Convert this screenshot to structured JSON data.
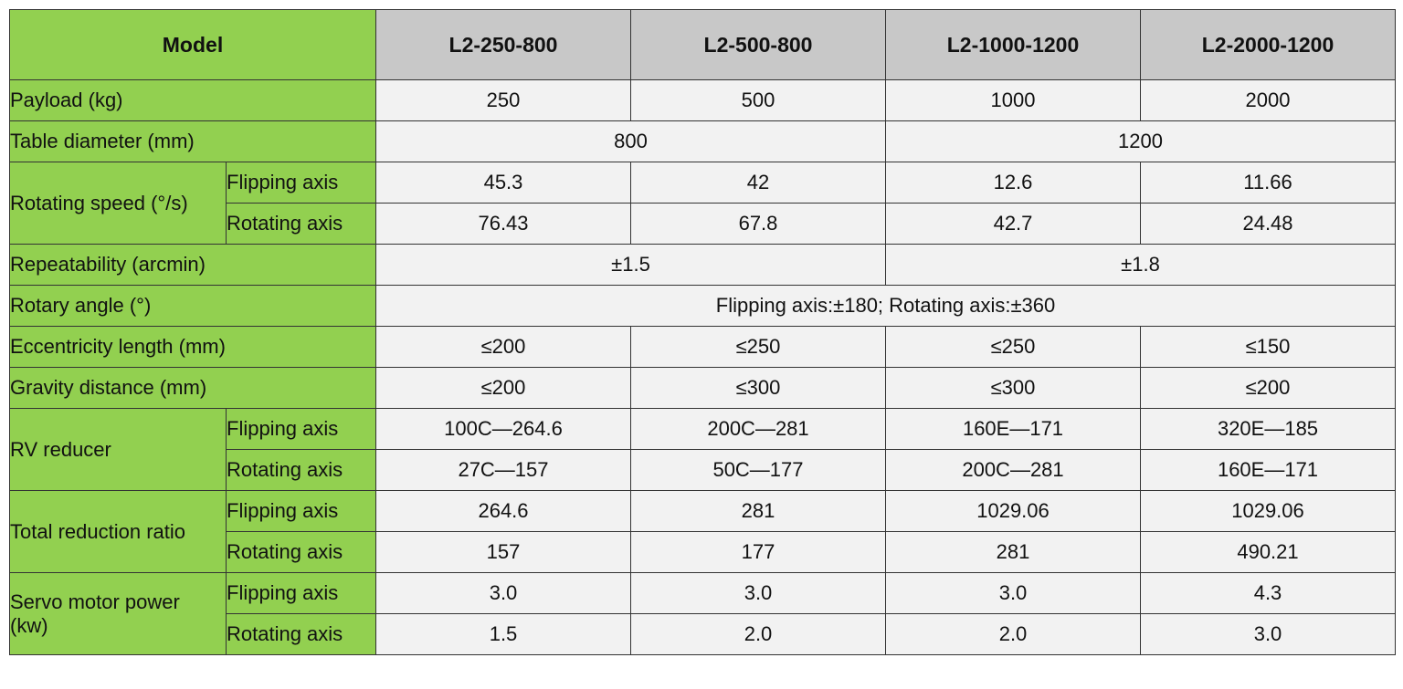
{
  "header": {
    "model_label": "Model",
    "models": [
      "L2-250-800",
      "L2-500-800",
      "L2-1000-1200",
      "L2-2000-1200"
    ]
  },
  "rows": {
    "payload": {
      "label": "Payload (kg)",
      "values": [
        "250",
        "500",
        "1000",
        "2000"
      ]
    },
    "table_diameter": {
      "label": "Table diameter (mm)",
      "values": [
        "800",
        "1200"
      ]
    },
    "rotating_speed": {
      "label": "Rotating speed (°/s)",
      "flipping": {
        "label": "Flipping axis",
        "values": [
          "45.3",
          "42",
          "12.6",
          "11.66"
        ]
      },
      "rotating": {
        "label": "Rotating axis",
        "values": [
          "76.43",
          "67.8",
          "42.7",
          "24.48"
        ]
      }
    },
    "repeatability": {
      "label": "Repeatability (arcmin)",
      "values": [
        "±1.5",
        "±1.8"
      ]
    },
    "rotary_angle": {
      "label": "Rotary angle (°)",
      "value": "Flipping axis:±180; Rotating axis:±360"
    },
    "eccentricity": {
      "label": "Eccentricity length (mm)",
      "values": [
        "≤200",
        "≤250",
        "≤250",
        "≤150"
      ]
    },
    "gravity": {
      "label": "Gravity distance (mm)",
      "values": [
        "≤200",
        "≤300",
        "≤300",
        "≤200"
      ]
    },
    "rv_reducer": {
      "label": "RV reducer",
      "flipping": {
        "label": "Flipping axis",
        "values": [
          "100C—264.6",
          "200C—281",
          "160E—171",
          "320E—185"
        ]
      },
      "rotating": {
        "label": "Rotating axis",
        "values": [
          "27C—157",
          "50C—177",
          "200C—281",
          "160E—171"
        ]
      }
    },
    "total_reduction": {
      "label": "Total reduction ratio",
      "flipping": {
        "label": "Flipping axis",
        "values": [
          "264.6",
          "281",
          "1029.06",
          "1029.06"
        ]
      },
      "rotating": {
        "label": "Rotating axis",
        "values": [
          "157",
          "177",
          "281",
          "490.21"
        ]
      }
    },
    "servo_power": {
      "label_line1": "Servo motor power",
      "label_line2": "(kw)",
      "flipping": {
        "label": "Flipping axis",
        "values": [
          "3.0",
          "3.0",
          "3.0",
          "4.3"
        ]
      },
      "rotating": {
        "label": "Rotating axis",
        "values": [
          "1.5",
          "2.0",
          "2.0",
          "3.0"
        ]
      }
    }
  },
  "colors": {
    "label_bg": "#92d050",
    "header_bg": "#c8c8c8",
    "cell_bg": "#f2f2f2",
    "border": "#333333"
  }
}
